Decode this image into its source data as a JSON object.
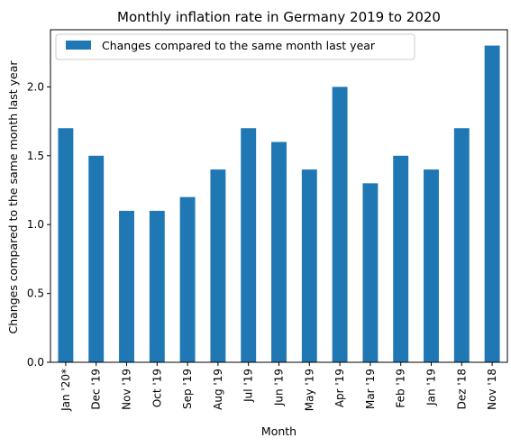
{
  "chart_data": {
    "type": "bar",
    "title": "Monthly inflation rate in Germany 2019 to 2020",
    "xlabel": "Month",
    "ylabel": "Changes compared to the same month last year",
    "categories": [
      "Jan '20*",
      "Dec '19",
      "Nov '19",
      "Oct '19",
      "Sep '19",
      "Aug '19",
      "Jul '19",
      "Jun '19",
      "May '19",
      "Apr '19",
      "Mar '19",
      "Feb '19",
      "Jan '19",
      "Dez '18",
      "Nov '18"
    ],
    "series": [
      {
        "name": "Changes compared to the same month last year",
        "color": "#1f77b4",
        "values": [
          1.7,
          1.5,
          1.1,
          1.1,
          1.2,
          1.4,
          1.7,
          1.6,
          1.4,
          2.0,
          1.3,
          1.5,
          1.4,
          1.7,
          2.3
        ]
      }
    ],
    "ylim": [
      0,
      2.415
    ],
    "yticks": [
      "0.0",
      "0.5",
      "1.0",
      "1.5",
      "2.0"
    ],
    "grid": false,
    "legend_position": "top-left"
  }
}
